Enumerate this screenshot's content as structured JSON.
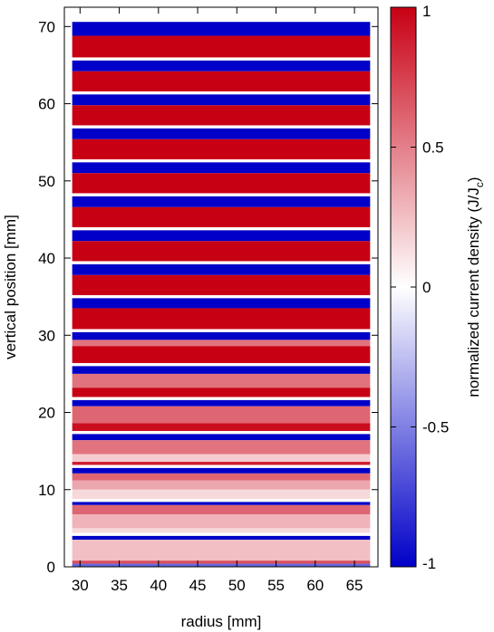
{
  "chart_data": {
    "type": "heatmap",
    "title": "",
    "xlabel": "radius [mm]",
    "ylabel": "vertical position [mm]",
    "colorbar_label": "normalized current density (J/J",
    "colorbar_label_sub": "c",
    "colorbar_label_end": ")",
    "xlim": [
      28,
      68
    ],
    "ylim": [
      0,
      72.5
    ],
    "x_ticks": [
      30,
      35,
      40,
      45,
      50,
      55,
      60,
      65
    ],
    "y_ticks": [
      0,
      10,
      20,
      30,
      40,
      50,
      60,
      70
    ],
    "colorbar_ticks": [
      1,
      0.5,
      0,
      -0.5,
      -1
    ],
    "colorbar_tick_labels": [
      "1",
      "0.5",
      "0",
      "-0.5",
      "-1"
    ],
    "colormap": {
      "low": "#0000c8",
      "mid": "#ffffff",
      "high": "#c80014"
    },
    "conductor_radius": [
      29,
      67
    ],
    "pancakes": [
      {
        "y0": 0.0,
        "y1": 4.0,
        "layers": [
          {
            "top": 4.0,
            "bot": 3.5,
            "v": -1.0
          },
          {
            "top": 3.5,
            "bot": 0.8,
            "v": 0.25
          },
          {
            "top": 0.8,
            "bot": 0.4,
            "v": 0.7
          },
          {
            "top": 0.4,
            "bot": 0.0,
            "v": -0.6
          }
        ]
      },
      {
        "y0": 4.4,
        "y1": 8.4,
        "layers": [
          {
            "top": 8.4,
            "bot": 8.0,
            "v": -1.0
          },
          {
            "top": 8.0,
            "bot": 6.8,
            "v": 0.6
          },
          {
            "top": 6.8,
            "bot": 5.0,
            "v": 0.3
          },
          {
            "top": 5.0,
            "bot": 4.4,
            "v": 0.15
          }
        ]
      },
      {
        "y0": 8.8,
        "y1": 12.8,
        "layers": [
          {
            "top": 12.8,
            "bot": 12.1,
            "v": -1.0
          },
          {
            "top": 12.1,
            "bot": 11.2,
            "v": 0.6
          },
          {
            "top": 11.2,
            "bot": 10.0,
            "v": 0.35
          },
          {
            "top": 10.0,
            "bot": 8.8,
            "v": 0.15
          }
        ]
      },
      {
        "y0": 13.2,
        "y1": 17.2,
        "layers": [
          {
            "top": 17.2,
            "bot": 16.4,
            "v": -1.0
          },
          {
            "top": 16.4,
            "bot": 14.6,
            "v": 0.55
          },
          {
            "top": 14.6,
            "bot": 13.6,
            "v": 0.2
          },
          {
            "top": 13.6,
            "bot": 13.2,
            "v": 0.9
          }
        ]
      },
      {
        "y0": 17.6,
        "y1": 21.6,
        "layers": [
          {
            "top": 21.6,
            "bot": 20.8,
            "v": -1.0
          },
          {
            "top": 20.8,
            "bot": 18.6,
            "v": 0.6
          },
          {
            "top": 18.6,
            "bot": 17.6,
            "v": 0.95
          }
        ]
      },
      {
        "y0": 22.0,
        "y1": 26.0,
        "layers": [
          {
            "top": 26.0,
            "bot": 25.0,
            "v": -1.0
          },
          {
            "top": 25.0,
            "bot": 23.2,
            "v": 0.55
          },
          {
            "top": 23.2,
            "bot": 22.0,
            "v": 1.0
          }
        ]
      },
      {
        "y0": 26.4,
        "y1": 30.4,
        "layers": [
          {
            "top": 30.4,
            "bot": 29.4,
            "v": -1.0
          },
          {
            "top": 29.4,
            "bot": 28.6,
            "v": 0.55
          },
          {
            "top": 28.6,
            "bot": 26.4,
            "v": 1.0
          }
        ]
      },
      {
        "y0": 30.8,
        "y1": 34.8,
        "layers": [
          {
            "top": 34.8,
            "bot": 33.5,
            "v": -1.0
          },
          {
            "top": 33.5,
            "bot": 30.8,
            "v": 1.0
          }
        ]
      },
      {
        "y0": 35.2,
        "y1": 39.2,
        "layers": [
          {
            "top": 39.2,
            "bot": 37.8,
            "v": -1.0
          },
          {
            "top": 37.8,
            "bot": 35.2,
            "v": 1.0
          }
        ]
      },
      {
        "y0": 39.6,
        "y1": 43.6,
        "layers": [
          {
            "top": 43.6,
            "bot": 42.2,
            "v": -1.0
          },
          {
            "top": 42.2,
            "bot": 39.6,
            "v": 1.0
          }
        ]
      },
      {
        "y0": 44.0,
        "y1": 48.0,
        "layers": [
          {
            "top": 48.0,
            "bot": 46.6,
            "v": -1.0
          },
          {
            "top": 46.6,
            "bot": 44.0,
            "v": 1.0
          }
        ]
      },
      {
        "y0": 48.4,
        "y1": 52.4,
        "layers": [
          {
            "top": 52.4,
            "bot": 51.0,
            "v": -1.0
          },
          {
            "top": 51.0,
            "bot": 48.4,
            "v": 1.0
          }
        ]
      },
      {
        "y0": 52.8,
        "y1": 56.8,
        "layers": [
          {
            "top": 56.8,
            "bot": 55.4,
            "v": -1.0
          },
          {
            "top": 55.4,
            "bot": 52.8,
            "v": 1.0
          }
        ]
      },
      {
        "y0": 57.2,
        "y1": 61.2,
        "layers": [
          {
            "top": 61.2,
            "bot": 59.8,
            "v": -1.0
          },
          {
            "top": 59.8,
            "bot": 57.2,
            "v": 1.0
          }
        ]
      },
      {
        "y0": 61.6,
        "y1": 65.6,
        "layers": [
          {
            "top": 65.6,
            "bot": 64.2,
            "v": -1.0
          },
          {
            "top": 64.2,
            "bot": 61.6,
            "v": 1.0
          }
        ]
      },
      {
        "y0": 66.0,
        "y1": 70.6,
        "layers": [
          {
            "top": 70.6,
            "bot": 68.8,
            "v": -1.0
          },
          {
            "top": 68.8,
            "bot": 66.0,
            "v": 1.0
          }
        ]
      }
    ]
  }
}
